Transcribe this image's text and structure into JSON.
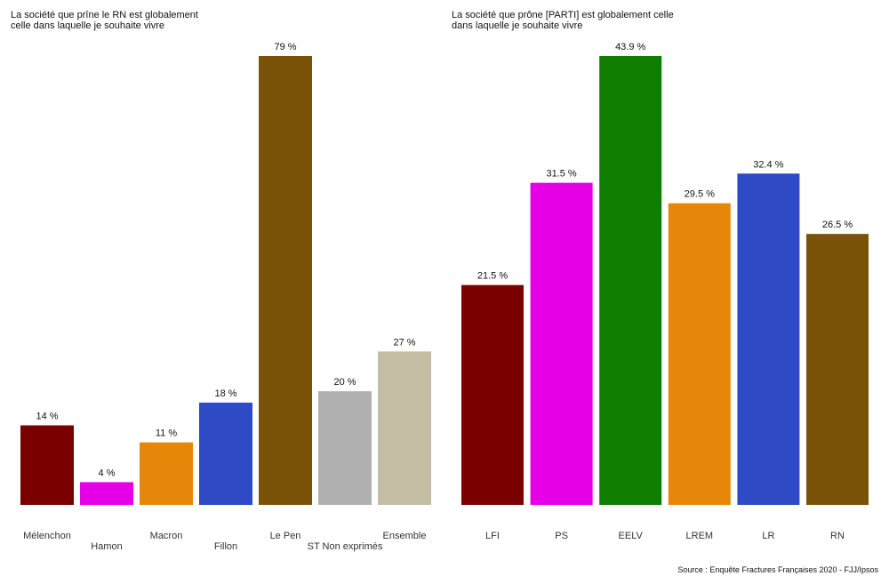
{
  "source": "Source : Enquête Fractures Françaises 2020 - FJJ/Ipsos",
  "chart_data": [
    {
      "type": "bar",
      "title": "La société que prîne le RN est globalement celle dans laquelle je souhaite vivre",
      "title_lines": [
        "La société que prîne le RN est globalement",
        "celle dans laquelle je souhaite vivre"
      ],
      "categories": [
        "Mélenchon",
        "Hamon",
        "Macron",
        "Fillon",
        "Le Pen",
        "ST Non exprimés",
        "Ensemble"
      ],
      "values": [
        14,
        4,
        11,
        18,
        79,
        20,
        27
      ],
      "value_labels": [
        "14 %",
        "4 %",
        "11 %",
        "18 %",
        "79 %",
        "20 %",
        "27 %"
      ],
      "colors": [
        "#7a0000",
        "#e600e6",
        "#e6870a",
        "#2e4ac4",
        "#7a5308",
        "#b0b0b0",
        "#c4bda3"
      ],
      "ylim": [
        0,
        79
      ],
      "grid": false,
      "legend": "none"
    },
    {
      "type": "bar",
      "title": "La société que prône [PARTI] est globalement celle dans laquelle je souhaite vivre",
      "title_lines": [
        "La société que prône [PARTI] est globalement celle",
        "dans laquelle je souhaite vivre"
      ],
      "categories": [
        "LFI",
        "PS",
        "EELV",
        "LREM",
        "LR",
        "RN"
      ],
      "values": [
        21.5,
        31.5,
        43.9,
        29.5,
        32.4,
        26.5
      ],
      "value_labels": [
        "21.5 %",
        "31.5 %",
        "43.9 %",
        "29.5 %",
        "32.4 %",
        "26.5 %"
      ],
      "colors": [
        "#7a0000",
        "#e600e6",
        "#0e7d00",
        "#e6870a",
        "#2e4ac4",
        "#7a5308"
      ],
      "ylim": [
        0,
        43.9
      ],
      "grid": false,
      "legend": "none"
    }
  ]
}
